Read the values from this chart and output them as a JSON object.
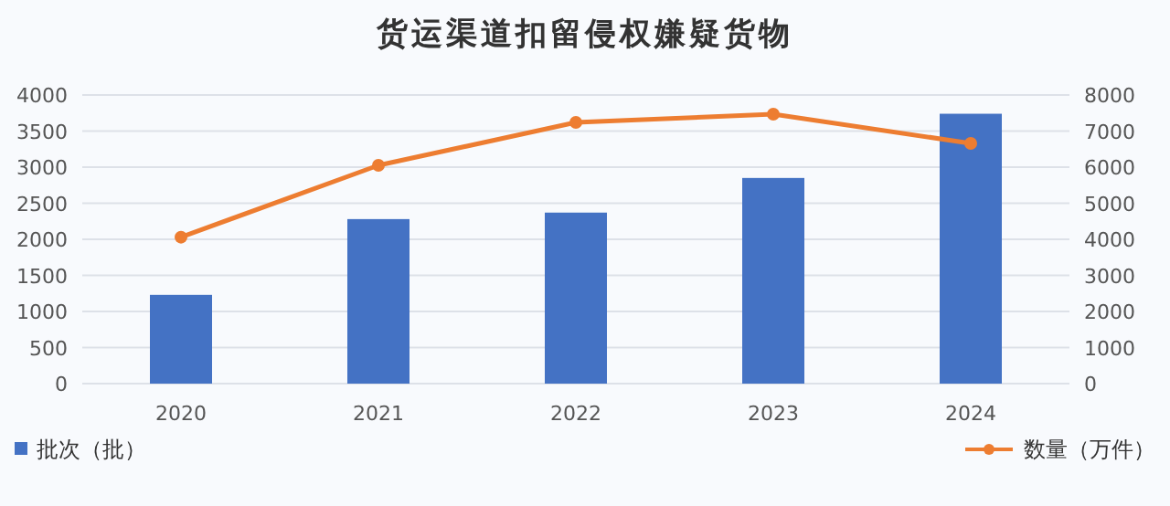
{
  "chart_data": {
    "type": "bar",
    "title": "货运渠道扣留侵权嫌疑货物",
    "categories": [
      "2020",
      "2021",
      "2022",
      "2023",
      "2024"
    ],
    "series": [
      {
        "name": "批次（批）",
        "color": "#4472c4",
        "values": [
          1230,
          2280,
          2370,
          2850,
          3740
        ]
      },
      {
        "name": "数量（万件）",
        "type": "line",
        "axis": "y2",
        "color": "#ed7d31",
        "marker": "circle",
        "values": [
          4060,
          6050,
          7240,
          7470,
          6660
        ]
      }
    ],
    "ylim": [
      0,
      4000
    ],
    "yticks": [
      0,
      500,
      1000,
      1500,
      2000,
      2500,
      3000,
      3500,
      4000
    ],
    "y2lim": [
      0,
      8000
    ],
    "y2ticks": [
      0,
      1000,
      2000,
      3000,
      4000,
      5000,
      6000,
      7000,
      8000
    ],
    "grid": "y",
    "legend": "bottom"
  }
}
